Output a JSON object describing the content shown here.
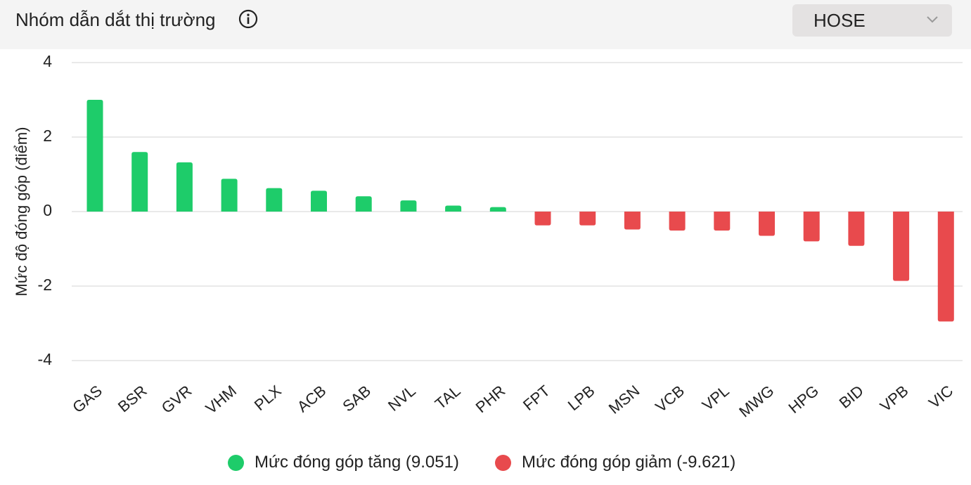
{
  "header": {
    "title": "Nhóm dẫn dắt thị trường",
    "info_icon": "info-circle-icon",
    "exchange_selector": {
      "value": "HOSE",
      "icon": "chevron-down-icon"
    }
  },
  "colors": {
    "positive": "#1ecc6a",
    "negative": "#e84a4d",
    "grid": "#e2e2e2",
    "header_bg": "#f4f4f4",
    "dropdown_bg": "#e4e2e2"
  },
  "legend": {
    "positive": "Mức đóng góp tăng (9.051)",
    "negative": "Mức đóng góp giảm (-9.621)"
  },
  "chart_data": {
    "type": "bar",
    "title": "",
    "xlabel": "",
    "ylabel": "Mức độ đóng góp (điểm)",
    "ylim": [
      -4,
      4
    ],
    "yticks": [
      "4",
      "2",
      "0",
      "-2",
      "-4"
    ],
    "grid": true,
    "legend_position": "bottom",
    "categories": [
      "GAS",
      "BSR",
      "GVR",
      "VHM",
      "PLX",
      "ACB",
      "SAB",
      "NVL",
      "TAL",
      "PHR",
      "FPT",
      "LPB",
      "MSN",
      "VCB",
      "VPL",
      "MWG",
      "HPG",
      "BID",
      "VPB",
      "VIC"
    ],
    "values": [
      3.0,
      1.6,
      1.32,
      0.88,
      0.63,
      0.56,
      0.41,
      0.3,
      0.16,
      0.12,
      -0.37,
      -0.37,
      -0.48,
      -0.51,
      -0.51,
      -0.65,
      -0.8,
      -0.92,
      -1.86,
      -2.95
    ]
  }
}
